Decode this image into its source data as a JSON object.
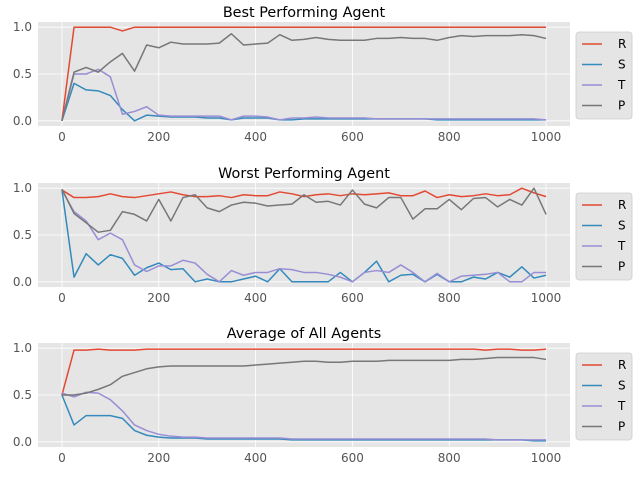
{
  "colors": {
    "R": "#E24A33",
    "S": "#348ABD",
    "T": "#988ED5",
    "P": "#777777",
    "axes_bg": "#E5E5E5",
    "grid": "#FFFFFF"
  },
  "chart_data": [
    {
      "type": "line",
      "title": "Best Performing Agent",
      "xlim": [
        0,
        1000
      ],
      "ylim": [
        0,
        1
      ],
      "xticks": [
        "0",
        "200",
        "400",
        "600",
        "800",
        "1000"
      ],
      "yticks": [
        "0.0",
        "0.5",
        "1.0"
      ],
      "grid": true,
      "legend_position": "right",
      "x": [
        0,
        25,
        50,
        75,
        100,
        125,
        150,
        175,
        200,
        225,
        250,
        275,
        300,
        325,
        350,
        375,
        400,
        425,
        450,
        475,
        500,
        525,
        550,
        575,
        600,
        625,
        650,
        675,
        700,
        725,
        750,
        775,
        800,
        825,
        850,
        875,
        900,
        925,
        950,
        975,
        1000
      ],
      "series": [
        {
          "name": "R",
          "values": [
            0,
            1.0,
            1.0,
            1.0,
            1.0,
            0.96,
            1.0,
            1.0,
            1.0,
            1.0,
            1.0,
            1.0,
            1.0,
            1.0,
            1.0,
            1.0,
            1.0,
            1.0,
            1.0,
            1.0,
            1.0,
            1.0,
            1.0,
            1.0,
            1.0,
            1.0,
            1.0,
            1.0,
            1.0,
            1.0,
            1.0,
            1.0,
            1.0,
            1.0,
            1.0,
            1.0,
            1.0,
            1.0,
            1.0,
            1.0,
            1.0
          ]
        },
        {
          "name": "S",
          "values": [
            0,
            0.4,
            0.33,
            0.32,
            0.27,
            0.12,
            0.0,
            0.06,
            0.05,
            0.04,
            0.04,
            0.04,
            0.03,
            0.03,
            0.01,
            0.03,
            0.03,
            0.03,
            0.01,
            0.01,
            0.02,
            0.02,
            0.02,
            0.02,
            0.02,
            0.02,
            0.02,
            0.02,
            0.02,
            0.02,
            0.02,
            0.01,
            0.01,
            0.01,
            0.01,
            0.01,
            0.01,
            0.01,
            0.01,
            0.01,
            0.01
          ]
        },
        {
          "name": "T",
          "values": [
            0,
            0.5,
            0.5,
            0.55,
            0.47,
            0.07,
            0.1,
            0.15,
            0.06,
            0.05,
            0.05,
            0.05,
            0.05,
            0.05,
            0.01,
            0.05,
            0.05,
            0.04,
            0.01,
            0.03,
            0.03,
            0.04,
            0.03,
            0.03,
            0.03,
            0.03,
            0.02,
            0.02,
            0.02,
            0.02,
            0.02,
            0.02,
            0.02,
            0.02,
            0.02,
            0.02,
            0.02,
            0.02,
            0.02,
            0.02,
            0.01
          ]
        },
        {
          "name": "P",
          "values": [
            0,
            0.52,
            0.57,
            0.52,
            0.63,
            0.72,
            0.53,
            0.81,
            0.78,
            0.84,
            0.82,
            0.82,
            0.82,
            0.83,
            0.93,
            0.81,
            0.82,
            0.83,
            0.92,
            0.86,
            0.87,
            0.89,
            0.87,
            0.86,
            0.86,
            0.86,
            0.88,
            0.88,
            0.89,
            0.88,
            0.88,
            0.86,
            0.89,
            0.91,
            0.9,
            0.91,
            0.91,
            0.91,
            0.92,
            0.91,
            0.88
          ]
        }
      ]
    },
    {
      "type": "line",
      "title": "Worst Performing Agent",
      "xlim": [
        0,
        1000
      ],
      "ylim": [
        0,
        1
      ],
      "xticks": [
        "0",
        "200",
        "400",
        "600",
        "800",
        "1000"
      ],
      "yticks": [
        "0.0",
        "0.5",
        "1.0"
      ],
      "grid": true,
      "legend_position": "right",
      "x": [
        0,
        25,
        50,
        75,
        100,
        125,
        150,
        175,
        200,
        225,
        250,
        275,
        300,
        325,
        350,
        375,
        400,
        425,
        450,
        475,
        500,
        525,
        550,
        575,
        600,
        625,
        650,
        675,
        700,
        725,
        750,
        775,
        800,
        825,
        850,
        875,
        900,
        925,
        950,
        975,
        1000
      ],
      "series": [
        {
          "name": "R",
          "values": [
            0.98,
            0.9,
            0.9,
            0.91,
            0.94,
            0.91,
            0.9,
            0.92,
            0.94,
            0.96,
            0.93,
            0.91,
            0.91,
            0.92,
            0.9,
            0.93,
            0.92,
            0.92,
            0.96,
            0.94,
            0.91,
            0.93,
            0.94,
            0.92,
            0.94,
            0.93,
            0.94,
            0.95,
            0.92,
            0.92,
            0.97,
            0.9,
            0.93,
            0.91,
            0.92,
            0.94,
            0.92,
            0.93,
            1.0,
            0.95,
            0.91
          ]
        },
        {
          "name": "S",
          "values": [
            0.98,
            0.05,
            0.3,
            0.18,
            0.29,
            0.25,
            0.07,
            0.15,
            0.2,
            0.13,
            0.14,
            0.0,
            0.03,
            0.0,
            0.0,
            0.03,
            0.06,
            0.0,
            0.14,
            0.0,
            0.0,
            0.0,
            0.0,
            0.1,
            0.0,
            0.1,
            0.22,
            0.0,
            0.07,
            0.08,
            0.0,
            0.08,
            0.0,
            0.0,
            0.05,
            0.03,
            0.1,
            0.05,
            0.16,
            0.04,
            0.07
          ]
        },
        {
          "name": "T",
          "values": [
            0.98,
            0.75,
            0.65,
            0.45,
            0.52,
            0.45,
            0.18,
            0.11,
            0.17,
            0.17,
            0.23,
            0.2,
            0.08,
            0.0,
            0.12,
            0.07,
            0.1,
            0.1,
            0.14,
            0.13,
            0.1,
            0.1,
            0.08,
            0.05,
            0.0,
            0.1,
            0.12,
            0.1,
            0.18,
            0.1,
            0.0,
            0.09,
            0.0,
            0.06,
            0.07,
            0.08,
            0.1,
            0.0,
            0.0,
            0.1,
            0.1
          ]
        },
        {
          "name": "P",
          "values": [
            0.99,
            0.73,
            0.63,
            0.53,
            0.55,
            0.75,
            0.72,
            0.65,
            0.88,
            0.65,
            0.9,
            0.93,
            0.79,
            0.75,
            0.82,
            0.85,
            0.84,
            0.81,
            0.82,
            0.83,
            0.93,
            0.85,
            0.86,
            0.82,
            0.98,
            0.83,
            0.79,
            0.9,
            0.9,
            0.67,
            0.78,
            0.78,
            0.88,
            0.77,
            0.89,
            0.9,
            0.8,
            0.88,
            0.82,
            1.0,
            0.72
          ]
        }
      ]
    },
    {
      "type": "line",
      "title": "Average of All Agents",
      "xlim": [
        0,
        1000
      ],
      "ylim": [
        0,
        1
      ],
      "xticks": [
        "0",
        "200",
        "400",
        "600",
        "800",
        "1000"
      ],
      "yticks": [
        "0.0",
        "0.5",
        "1.0"
      ],
      "grid": true,
      "legend_position": "right",
      "x": [
        0,
        25,
        50,
        75,
        100,
        125,
        150,
        175,
        200,
        225,
        250,
        275,
        300,
        325,
        350,
        375,
        400,
        425,
        450,
        475,
        500,
        525,
        550,
        575,
        600,
        625,
        650,
        675,
        700,
        725,
        750,
        775,
        800,
        825,
        850,
        875,
        900,
        925,
        950,
        975,
        1000
      ],
      "series": [
        {
          "name": "R",
          "values": [
            0.5,
            0.98,
            0.98,
            0.99,
            0.98,
            0.98,
            0.98,
            0.99,
            0.99,
            0.99,
            0.99,
            0.99,
            0.99,
            0.99,
            0.99,
            0.99,
            0.99,
            0.99,
            0.99,
            0.99,
            0.99,
            0.99,
            0.99,
            0.99,
            0.99,
            0.99,
            0.99,
            0.99,
            0.99,
            0.99,
            0.99,
            0.99,
            0.99,
            0.99,
            0.99,
            0.98,
            0.99,
            0.99,
            0.98,
            0.98,
            0.99
          ]
        },
        {
          "name": "S",
          "values": [
            0.5,
            0.18,
            0.28,
            0.28,
            0.28,
            0.25,
            0.12,
            0.07,
            0.05,
            0.04,
            0.04,
            0.04,
            0.03,
            0.03,
            0.03,
            0.03,
            0.03,
            0.03,
            0.03,
            0.02,
            0.02,
            0.02,
            0.02,
            0.02,
            0.02,
            0.02,
            0.02,
            0.02,
            0.02,
            0.02,
            0.02,
            0.02,
            0.02,
            0.02,
            0.02,
            0.02,
            0.02,
            0.02,
            0.02,
            0.01,
            0.01
          ]
        },
        {
          "name": "T",
          "values": [
            0.52,
            0.48,
            0.53,
            0.52,
            0.45,
            0.33,
            0.18,
            0.12,
            0.08,
            0.06,
            0.05,
            0.05,
            0.04,
            0.04,
            0.04,
            0.04,
            0.04,
            0.04,
            0.04,
            0.03,
            0.03,
            0.03,
            0.03,
            0.03,
            0.03,
            0.03,
            0.03,
            0.03,
            0.03,
            0.03,
            0.03,
            0.03,
            0.03,
            0.03,
            0.03,
            0.03,
            0.02,
            0.02,
            0.02,
            0.02,
            0.02
          ]
        },
        {
          "name": "P",
          "values": [
            0.5,
            0.5,
            0.52,
            0.56,
            0.61,
            0.7,
            0.74,
            0.78,
            0.8,
            0.81,
            0.81,
            0.81,
            0.81,
            0.81,
            0.81,
            0.81,
            0.82,
            0.83,
            0.84,
            0.85,
            0.86,
            0.86,
            0.85,
            0.85,
            0.86,
            0.86,
            0.86,
            0.87,
            0.87,
            0.87,
            0.87,
            0.87,
            0.87,
            0.88,
            0.88,
            0.89,
            0.9,
            0.9,
            0.9,
            0.9,
            0.88
          ]
        }
      ]
    }
  ]
}
